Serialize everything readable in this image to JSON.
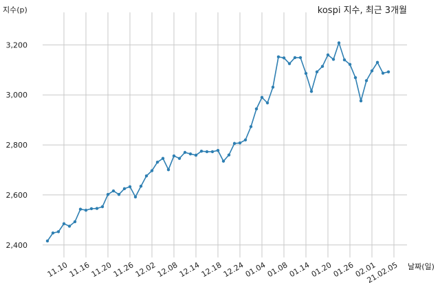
{
  "chart_data": {
    "type": "line",
    "title": "kospi 지수, 최근 3개월",
    "ylabel": "지수(p)",
    "xlabel": "날짜(일)",
    "ylim": [
      2350,
      3330
    ],
    "yticks": [
      2400,
      2600,
      2800,
      3000,
      3200
    ],
    "ytick_labels": [
      "2,400",
      "2,600",
      "2,800",
      "3,000",
      "3,200"
    ],
    "grid": true,
    "xtick_labels": [
      "11.10",
      "11.16",
      "11.20",
      "11.26",
      "12.02",
      "12.08",
      "12.14",
      "12.18",
      "12.24",
      "01.04",
      "01.08",
      "01.14",
      "01.20",
      "01.26",
      "02.01",
      "21.02.05"
    ],
    "xtick_index": [
      3,
      7,
      11,
      15,
      19,
      23,
      27,
      31,
      35,
      39,
      43,
      47,
      51,
      55,
      59,
      63
    ],
    "series": [
      {
        "values": [
          2416,
          2448,
          2453,
          2485,
          2475,
          2493,
          2543,
          2539,
          2545,
          2546,
          2553,
          2602,
          2616,
          2602,
          2625,
          2633,
          2592,
          2635,
          2676,
          2697,
          2731,
          2746,
          2701,
          2756,
          2746,
          2770,
          2764,
          2759,
          2775,
          2773,
          2773,
          2778,
          2735,
          2760,
          2806,
          2808,
          2820,
          2873,
          2944,
          2990,
          2968,
          3031,
          3152,
          3148,
          3125,
          3149,
          3149,
          3086,
          3014,
          3092,
          3114,
          3160,
          3142,
          3208,
          3140,
          3122,
          3069,
          2976,
          3057,
          3096,
          3130,
          3087,
          3092
        ]
      }
    ]
  }
}
